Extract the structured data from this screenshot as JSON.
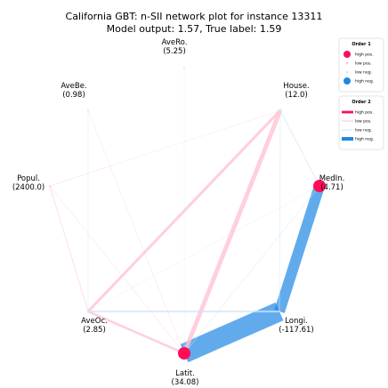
{
  "chart_data": {
    "type": "network",
    "title_line1": "California GBT: n-SII network plot for instance 13311",
    "title_line2": "Model output: 1.57, True label: 1.59",
    "colors": {
      "high_pos": "#ff0d57",
      "low_pos": "#ffc3d5",
      "low_neg": "#d1e6fa",
      "high_neg": "#1e88e5"
    },
    "nodes": [
      {
        "id": "AveRo",
        "name": "AveRo.",
        "value": "(5.25)",
        "strength": -0.15
      },
      {
        "id": "House",
        "name": "House.",
        "value": "(12.0)",
        "strength": -0.25
      },
      {
        "id": "MedIn",
        "name": "MedIn.",
        "value": "(4.71)",
        "strength": 1.0
      },
      {
        "id": "Longi",
        "name": "Longi.",
        "value": "(-117.61)",
        "strength": 0.02
      },
      {
        "id": "Latit",
        "name": "Latit.",
        "value": "(34.08)",
        "strength": 1.0
      },
      {
        "id": "AveOc",
        "name": "AveOc.",
        "value": "(2.85)",
        "strength": -0.15
      },
      {
        "id": "Popul",
        "name": "Popul.",
        "value": "(2400.0)",
        "strength": 0.08
      },
      {
        "id": "AveBe",
        "name": "AveBe.",
        "value": "(0.98)",
        "strength": -0.04
      }
    ],
    "edges": [
      {
        "source": "Latit",
        "target": "Longi",
        "strength": -1.0
      },
      {
        "source": "MedIn",
        "target": "Longi",
        "strength": -0.55
      },
      {
        "source": "Latit",
        "target": "House",
        "strength": 0.22
      },
      {
        "source": "AveOc",
        "target": "House",
        "strength": 0.14
      },
      {
        "source": "Latit",
        "target": "AveOc",
        "strength": 0.12
      },
      {
        "source": "AveOc",
        "target": "Longi",
        "strength": -0.1
      },
      {
        "source": "AveBe",
        "target": "AveOc",
        "strength": -0.04
      },
      {
        "source": "House",
        "target": "Longi",
        "strength": -0.05
      },
      {
        "source": "House",
        "target": "MedIn",
        "strength": -0.06
      },
      {
        "source": "Popul",
        "target": "AveOc",
        "strength": 0.05
      },
      {
        "source": "MedIn",
        "target": "AveOc",
        "strength": -0.03
      },
      {
        "source": "Popul",
        "target": "Latit",
        "strength": 0.03
      },
      {
        "source": "AveRo",
        "target": "Latit",
        "strength": -0.03
      },
      {
        "source": "MedIn",
        "target": "Latit",
        "strength": -0.04
      },
      {
        "source": "AveBe",
        "target": "Latit",
        "strength": 0.03
      },
      {
        "source": "Popul",
        "target": "House",
        "strength": 0.03
      }
    ],
    "legend": {
      "order1": {
        "title": "Order 1",
        "entries": [
          {
            "label": "high pos.",
            "color_key": "high_pos"
          },
          {
            "label": "low pos.",
            "color_key": "low_pos"
          },
          {
            "label": "low neg.",
            "color_key": "low_neg"
          },
          {
            "label": "high neg.",
            "color_key": "high_neg"
          }
        ]
      },
      "order2": {
        "title": "Order 2",
        "entries": [
          {
            "label": "high pos.",
            "color_key": "high_pos"
          },
          {
            "label": "low pos.",
            "color_key": "low_pos"
          },
          {
            "label": "low neg.",
            "color_key": "low_neg"
          },
          {
            "label": "high neg.",
            "color_key": "high_neg"
          }
        ]
      },
      "placement": "top-right"
    }
  }
}
